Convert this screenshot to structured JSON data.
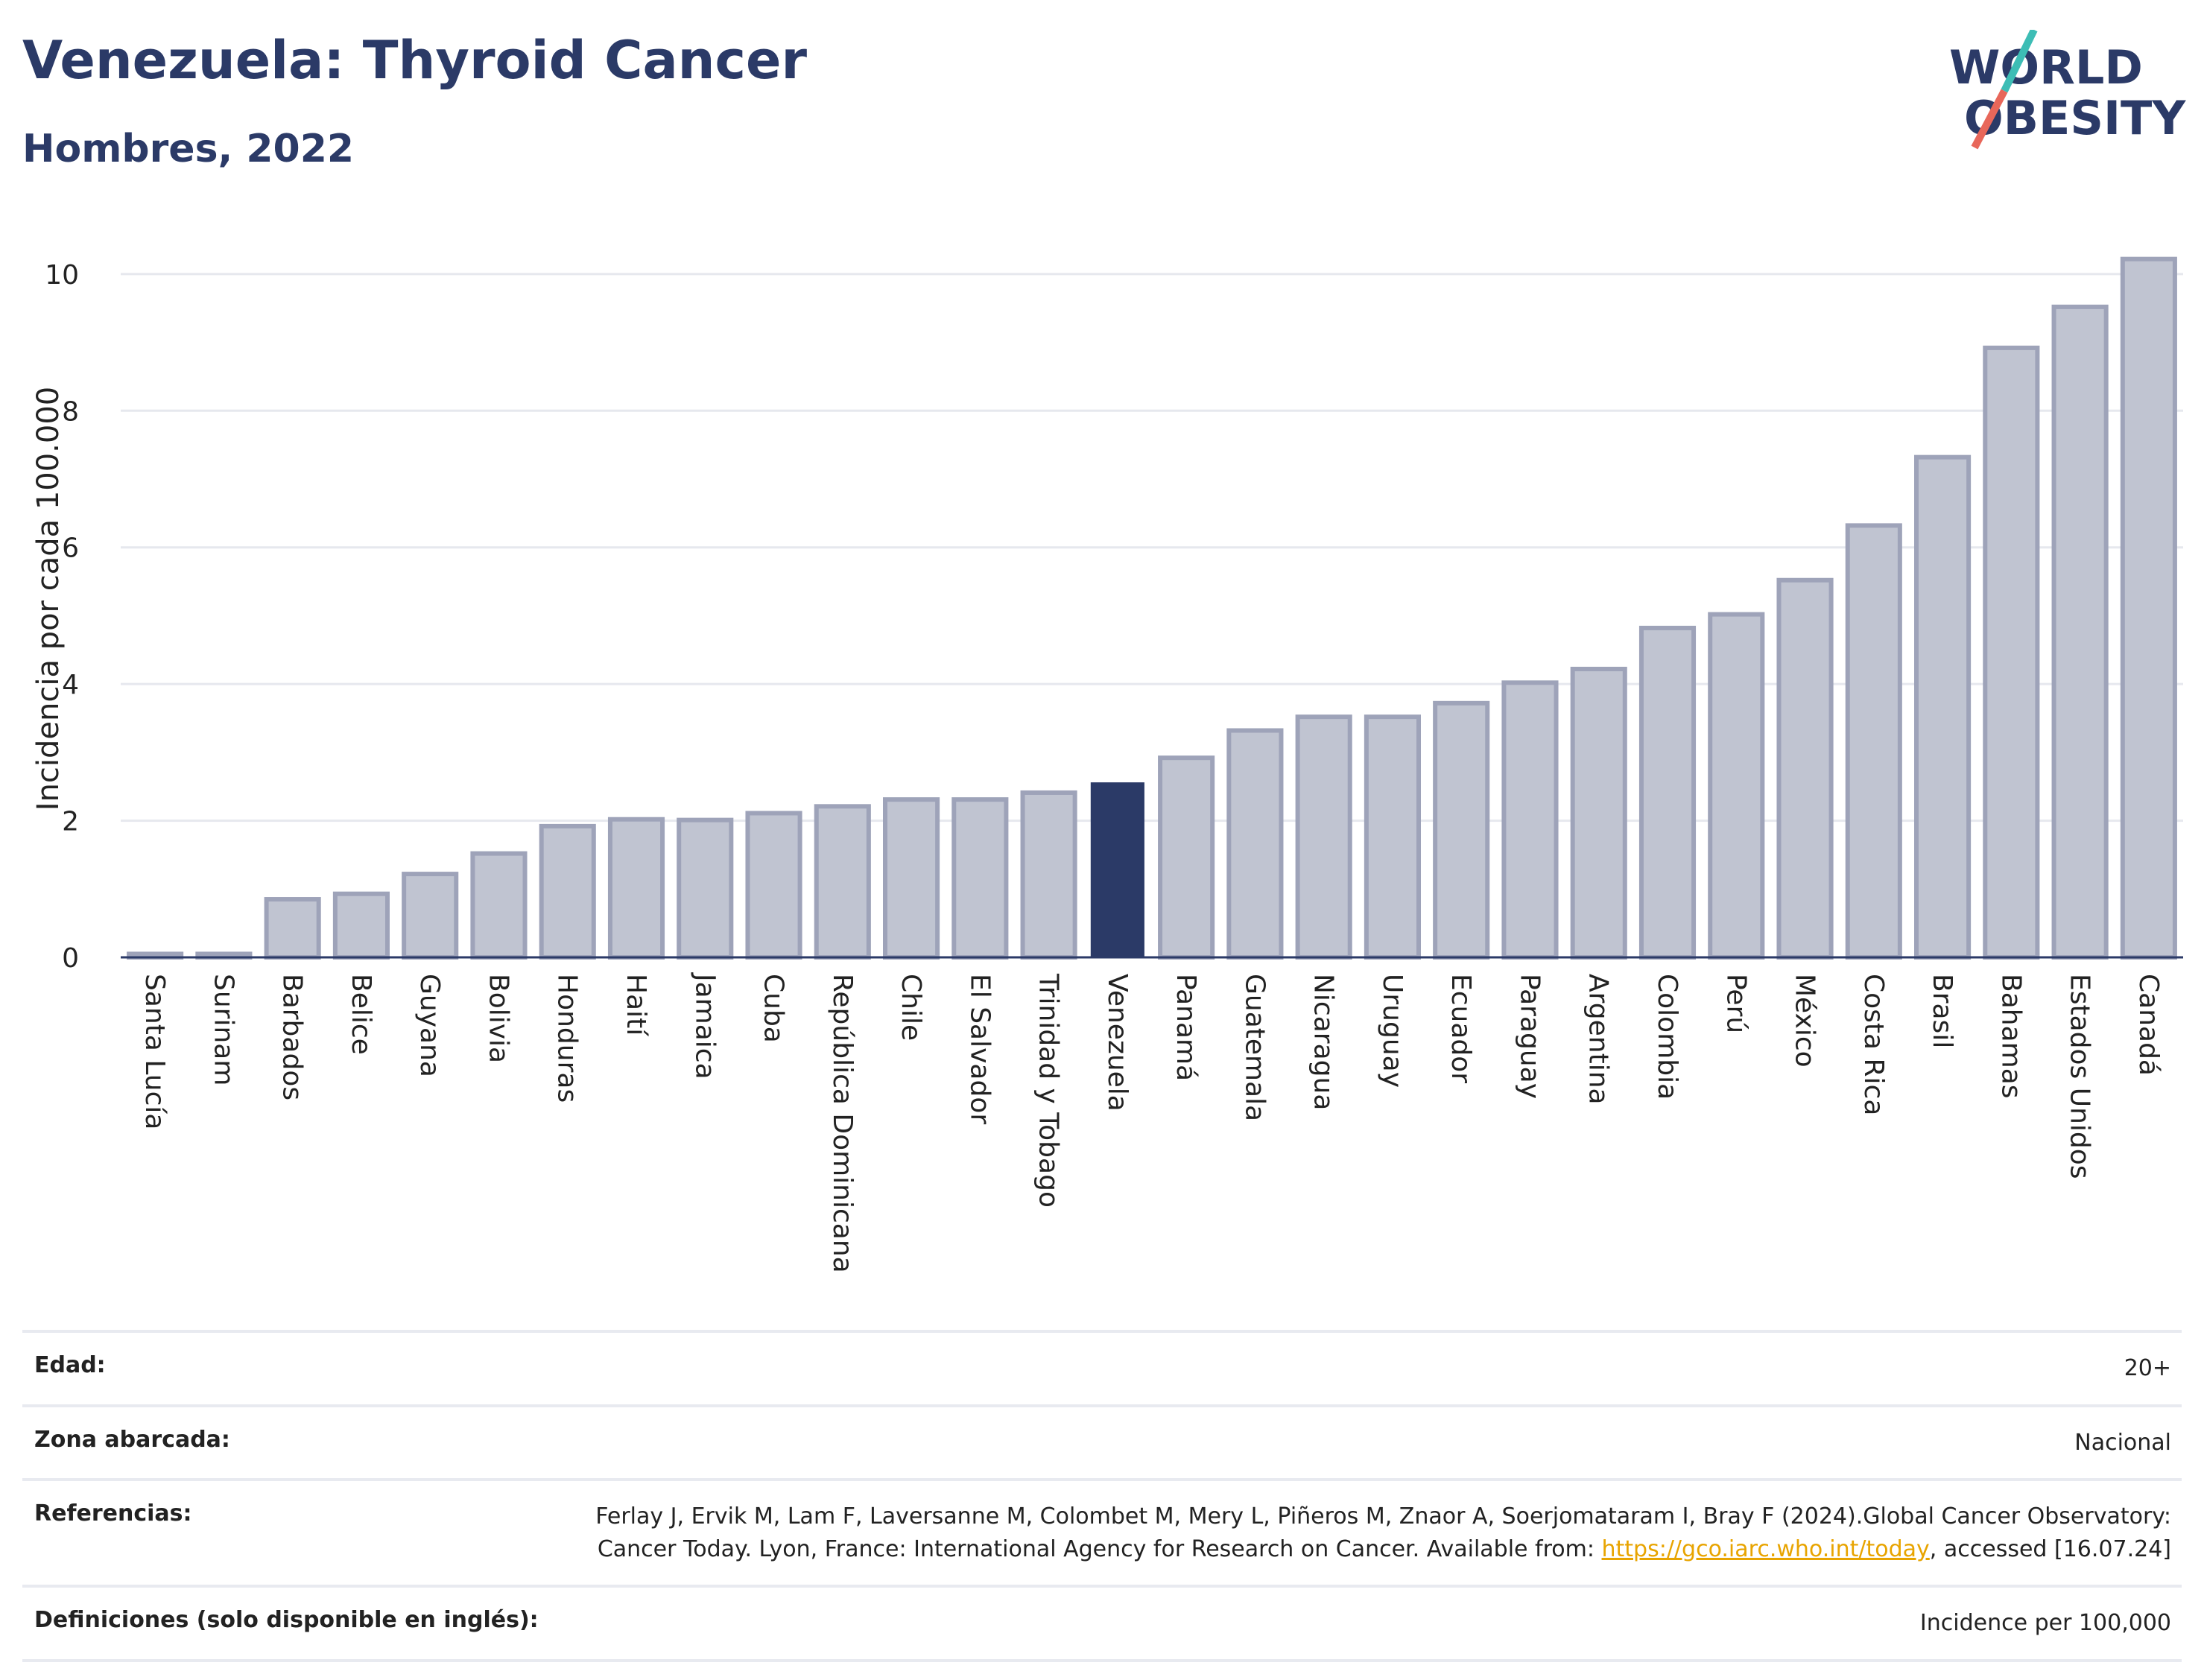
{
  "header": {
    "title": "Venezuela: Thyroid Cancer",
    "subtitle": "Hombres, 2022"
  },
  "logo": {
    "line1": "WORLD",
    "line2": "OBESITY",
    "colors": {
      "text": "#2b3a67",
      "slash_red": "#e8675a",
      "slash_teal": "#3dbdb5"
    }
  },
  "colors": {
    "bar": "#c0c4d1",
    "bar_stroke": "#9ea3b9",
    "highlight": "#2b3a67",
    "grid": "#e6e8ee",
    "axis": "#2b3a67"
  },
  "chart_data": {
    "type": "bar",
    "ylabel": "Incidencia por cada 100.000",
    "ylim": [
      0,
      10.5
    ],
    "yticks": [
      0,
      2,
      4,
      6,
      8,
      10
    ],
    "grid": true,
    "highlight": "Venezuela",
    "categories": [
      "Santa Lucía",
      "Surinam",
      "Barbados",
      "Belice",
      "Guyana",
      "Bolivia",
      "Honduras",
      "Haití",
      "Jamaica",
      "Cuba",
      "República Dominicana",
      "Chile",
      "El Salvador",
      "Trinidad y Tobago",
      "Venezuela",
      "Panamá",
      "Guatemala",
      "Nicaragua",
      "Uruguay",
      "Ecuador",
      "Paraguay",
      "Argentina",
      "Colombia",
      "Perú",
      "México",
      "Costa Rica",
      "Brasil",
      "Bahamas",
      "Estados Unidos",
      "Canadá"
    ],
    "values": [
      0.05,
      0.05,
      0.85,
      0.93,
      1.22,
      1.52,
      1.92,
      2.02,
      2.01,
      2.11,
      2.21,
      2.31,
      2.31,
      2.41,
      2.55,
      2.92,
      3.32,
      3.52,
      3.52,
      3.72,
      4.02,
      4.22,
      4.82,
      5.02,
      5.52,
      6.32,
      7.32,
      8.92,
      9.52,
      10.22
    ]
  },
  "meta": {
    "age_label": "Edad:",
    "age_value": "20+",
    "area_label": "Zona abarcada:",
    "area_value": "Nacional",
    "refs_label": "Referencias:",
    "refs_text1": "Ferlay J, Ervik M, Lam F, Laversanne M, Colombet M, Mery L, Piñeros M, Znaor A, Soerjomataram I, Bray F (2024).Global Cancer Observatory: Cancer Today. Lyon, France: International Agency for Research on Cancer. Available from: ",
    "refs_link": "https://gco.iarc.who.int/today",
    "refs_text2": ", accessed [16.07.24]",
    "defs_label": "Definiciones (solo disponible en inglés):",
    "defs_value": "Incidence per 100,000"
  }
}
